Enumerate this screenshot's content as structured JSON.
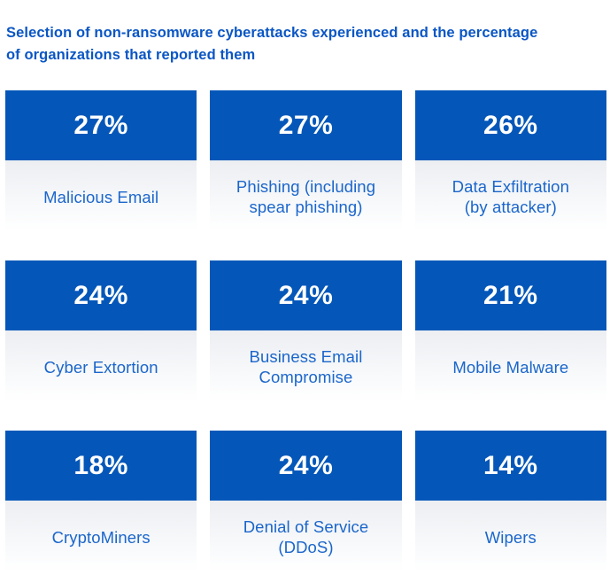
{
  "page": {
    "title_line1": "Selection of non-ransomware cyberattacks experienced and the percentage",
    "title_line2": "of organizations that reported them"
  },
  "colors": {
    "card_header_blue": "#0457b9",
    "title_blue": "#0a56c4",
    "label_blue": "#1b66cb",
    "card_body_top": "#eceef2",
    "card_body_bottom": "#ffffff",
    "percent_text": "#ffffff",
    "background": "#ffffff"
  },
  "chart_data": {
    "type": "table",
    "title": "Selection of non-ransomware cyberattacks experienced and the percentage of organizations that reported them",
    "categories": [
      "Malicious Email",
      "Phishing (including spear phishing)",
      "Data Exfiltration (by attacker)",
      "Cyber Extortion",
      "Business Email Compromise",
      "Mobile Malware",
      "CryptoMiners",
      "Denial of Service (DDoS)",
      "Wipers"
    ],
    "values": [
      27,
      27,
      26,
      24,
      24,
      21,
      18,
      24,
      14
    ],
    "unit": "%",
    "layout": "3x3 grid of stat cards, blue percent header over light label panel"
  },
  "cards": [
    {
      "percent": "27%",
      "label": "Malicious Email",
      "lines": [
        "Malicious Email"
      ]
    },
    {
      "percent": "27%",
      "label": "Phishing (including spear phishing)",
      "lines": [
        "Phishing (including",
        "spear phishing)"
      ]
    },
    {
      "percent": "26%",
      "label": "Data Exfiltration (by attacker)",
      "lines": [
        "Data Exfiltration",
        "(by attacker)"
      ]
    },
    {
      "percent": "24%",
      "label": "Cyber Extortion",
      "lines": [
        "Cyber Extortion"
      ]
    },
    {
      "percent": "24%",
      "label": "Business Email Compromise",
      "lines": [
        "Business Email",
        "Compromise"
      ]
    },
    {
      "percent": "21%",
      "label": "Mobile Malware",
      "lines": [
        "Mobile Malware"
      ]
    },
    {
      "percent": "18%",
      "label": "CryptoMiners",
      "lines": [
        "CryptoMiners"
      ]
    },
    {
      "percent": "24%",
      "label": "Denial of Service (DDoS)",
      "lines": [
        "Denial of Service",
        "(DDoS)"
      ]
    },
    {
      "percent": "14%",
      "label": "Wipers",
      "lines": [
        "Wipers"
      ]
    }
  ]
}
